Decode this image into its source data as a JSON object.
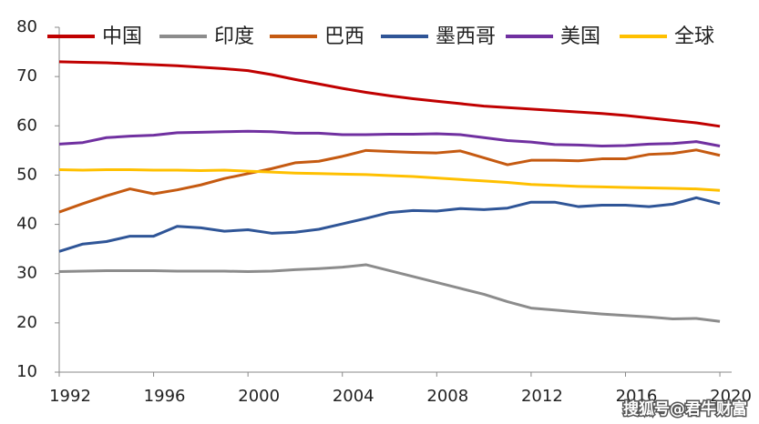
{
  "chart_data": {
    "type": "line",
    "x": [
      1992,
      1993,
      1994,
      1995,
      1996,
      1997,
      1998,
      1999,
      2000,
      2001,
      2002,
      2003,
      2004,
      2005,
      2006,
      2007,
      2008,
      2009,
      2010,
      2011,
      2012,
      2013,
      2014,
      2015,
      2016,
      2017,
      2018,
      2019,
      2020
    ],
    "series": [
      {
        "name": "中国",
        "color": "#c00000",
        "values": [
          73,
          72.9,
          72.8,
          72.6,
          72.4,
          72.2,
          71.9,
          71.6,
          71.2,
          70.4,
          69.4,
          68.5,
          67.6,
          66.8,
          66.1,
          65.5,
          65,
          64.5,
          64,
          63.7,
          63.4,
          63.1,
          62.8,
          62.5,
          62.1,
          61.6,
          61.1,
          60.6,
          59.9
        ]
      },
      {
        "name": "印度",
        "color": "#8c8c8c",
        "values": [
          30.4,
          30.5,
          30.6,
          30.6,
          30.6,
          30.5,
          30.5,
          30.5,
          30.4,
          30.5,
          30.8,
          31,
          31.3,
          31.8,
          30.6,
          29.4,
          28.2,
          27,
          25.8,
          24.3,
          23,
          22.6,
          22.2,
          21.8,
          21.5,
          21.2,
          20.8,
          20.9,
          20.3
        ]
      },
      {
        "name": "巴西",
        "color": "#c55a11",
        "values": [
          42.5,
          44.2,
          45.8,
          47.2,
          46.2,
          47,
          48,
          49.3,
          50.3,
          51.3,
          52.5,
          52.8,
          53.8,
          55,
          54.8,
          54.6,
          54.5,
          54.9,
          53.5,
          52.1,
          53,
          53,
          52.9,
          53.3,
          53.3,
          54.2,
          54.4,
          55.1,
          54
        ]
      },
      {
        "name": "墨西哥",
        "color": "#2f5597",
        "values": [
          34.5,
          36,
          36.5,
          37.6,
          37.6,
          39.6,
          39.3,
          38.6,
          38.9,
          38.2,
          38.4,
          39,
          40.1,
          41.2,
          42.4,
          42.8,
          42.7,
          43.2,
          43,
          43.3,
          44.5,
          44.5,
          43.6,
          43.9,
          43.9,
          43.6,
          44.1,
          45.4,
          44.2
        ]
      },
      {
        "name": "美国",
        "color": "#7030a0",
        "values": [
          56.3,
          56.6,
          57.6,
          57.9,
          58.1,
          58.6,
          58.7,
          58.8,
          58.9,
          58.8,
          58.5,
          58.5,
          58.2,
          58.2,
          58.3,
          58.3,
          58.4,
          58.2,
          57.6,
          57,
          56.7,
          56.2,
          56.1,
          55.9,
          56,
          56.3,
          56.4,
          56.8,
          55.9
        ]
      },
      {
        "name": "全球",
        "color": "#ffc000",
        "values": [
          51.1,
          51,
          51.1,
          51.1,
          51,
          51,
          50.9,
          51,
          50.8,
          50.6,
          50.4,
          50.3,
          50.2,
          50.1,
          49.9,
          49.7,
          49.4,
          49.1,
          48.8,
          48.5,
          48.1,
          47.9,
          47.7,
          47.6,
          47.5,
          47.4,
          47.3,
          47.2,
          46.9
        ]
      }
    ],
    "xlim": [
      1992,
      2020.5
    ],
    "xticks": [
      1992,
      1996,
      2000,
      2004,
      2008,
      2012,
      2016,
      2020
    ],
    "ylim": [
      10,
      80
    ],
    "yticks": [
      10,
      20,
      30,
      40,
      50,
      60,
      70,
      80
    ],
    "legend": "top",
    "watermark": "搜狐号@君牛财富"
  }
}
